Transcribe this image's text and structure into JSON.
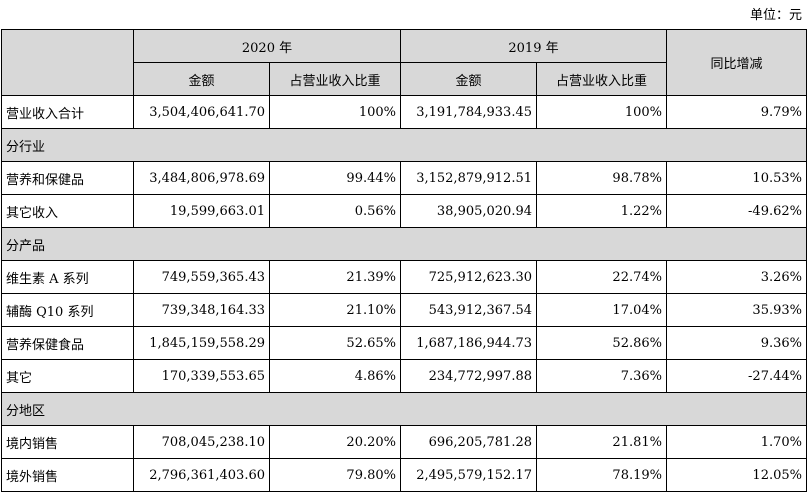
{
  "unit_label": "单位：元",
  "header": {
    "y2020": "2020 年",
    "y2019": "2019 年",
    "yoy": "同比增减",
    "amount_2020": "金额",
    "ratio_2020": "占营业收入比重",
    "amount_2019": "金额",
    "ratio_2019": "占营业收入比重"
  },
  "rows": [
    {
      "type": "data",
      "label": "营业收入合计",
      "a2020": "3,504,406,641.70",
      "r2020": "100%",
      "a2019": "3,191,784,933.45",
      "r2019": "100%",
      "yoy": "9.79%"
    },
    {
      "type": "section",
      "label": "分行业"
    },
    {
      "type": "data",
      "label": "营养和保健品",
      "a2020": "3,484,806,978.69",
      "r2020": "99.44%",
      "a2019": "3,152,879,912.51",
      "r2019": "98.78%",
      "yoy": "10.53%"
    },
    {
      "type": "data",
      "label": "其它收入",
      "a2020": "19,599,663.01",
      "r2020": "0.56%",
      "a2019": "38,905,020.94",
      "r2019": "1.22%",
      "yoy": "-49.62%"
    },
    {
      "type": "section",
      "label": "分产品"
    },
    {
      "type": "data",
      "label": "维生素 A 系列",
      "a2020": "749,559,365.43",
      "r2020": "21.39%",
      "a2019": "725,912,623.30",
      "r2019": "22.74%",
      "yoy": "3.26%"
    },
    {
      "type": "data",
      "label": "辅酶 Q10 系列",
      "a2020": "739,348,164.33",
      "r2020": "21.10%",
      "a2019": "543,912,367.54",
      "r2019": "17.04%",
      "yoy": "35.93%"
    },
    {
      "type": "data",
      "label": "营养保健食品",
      "a2020": "1,845,159,558.29",
      "r2020": "52.65%",
      "a2019": "1,687,186,944.73",
      "r2019": "52.86%",
      "yoy": "9.36%"
    },
    {
      "type": "data",
      "label": "其它",
      "a2020": "170,339,553.65",
      "r2020": "4.86%",
      "a2019": "234,772,997.88",
      "r2019": "7.36%",
      "yoy": "-27.44%"
    },
    {
      "type": "section",
      "label": "分地区"
    },
    {
      "type": "data",
      "label": "境内销售",
      "a2020": "708,045,238.10",
      "r2020": "20.20%",
      "a2019": "696,205,781.28",
      "r2019": "21.81%",
      "yoy": "1.70%"
    },
    {
      "type": "data",
      "label": "境外销售",
      "a2020": "2,796,361,403.60",
      "r2020": "79.80%",
      "a2019": "2,495,579,152.17",
      "r2019": "78.19%",
      "yoy": "12.05%"
    }
  ]
}
